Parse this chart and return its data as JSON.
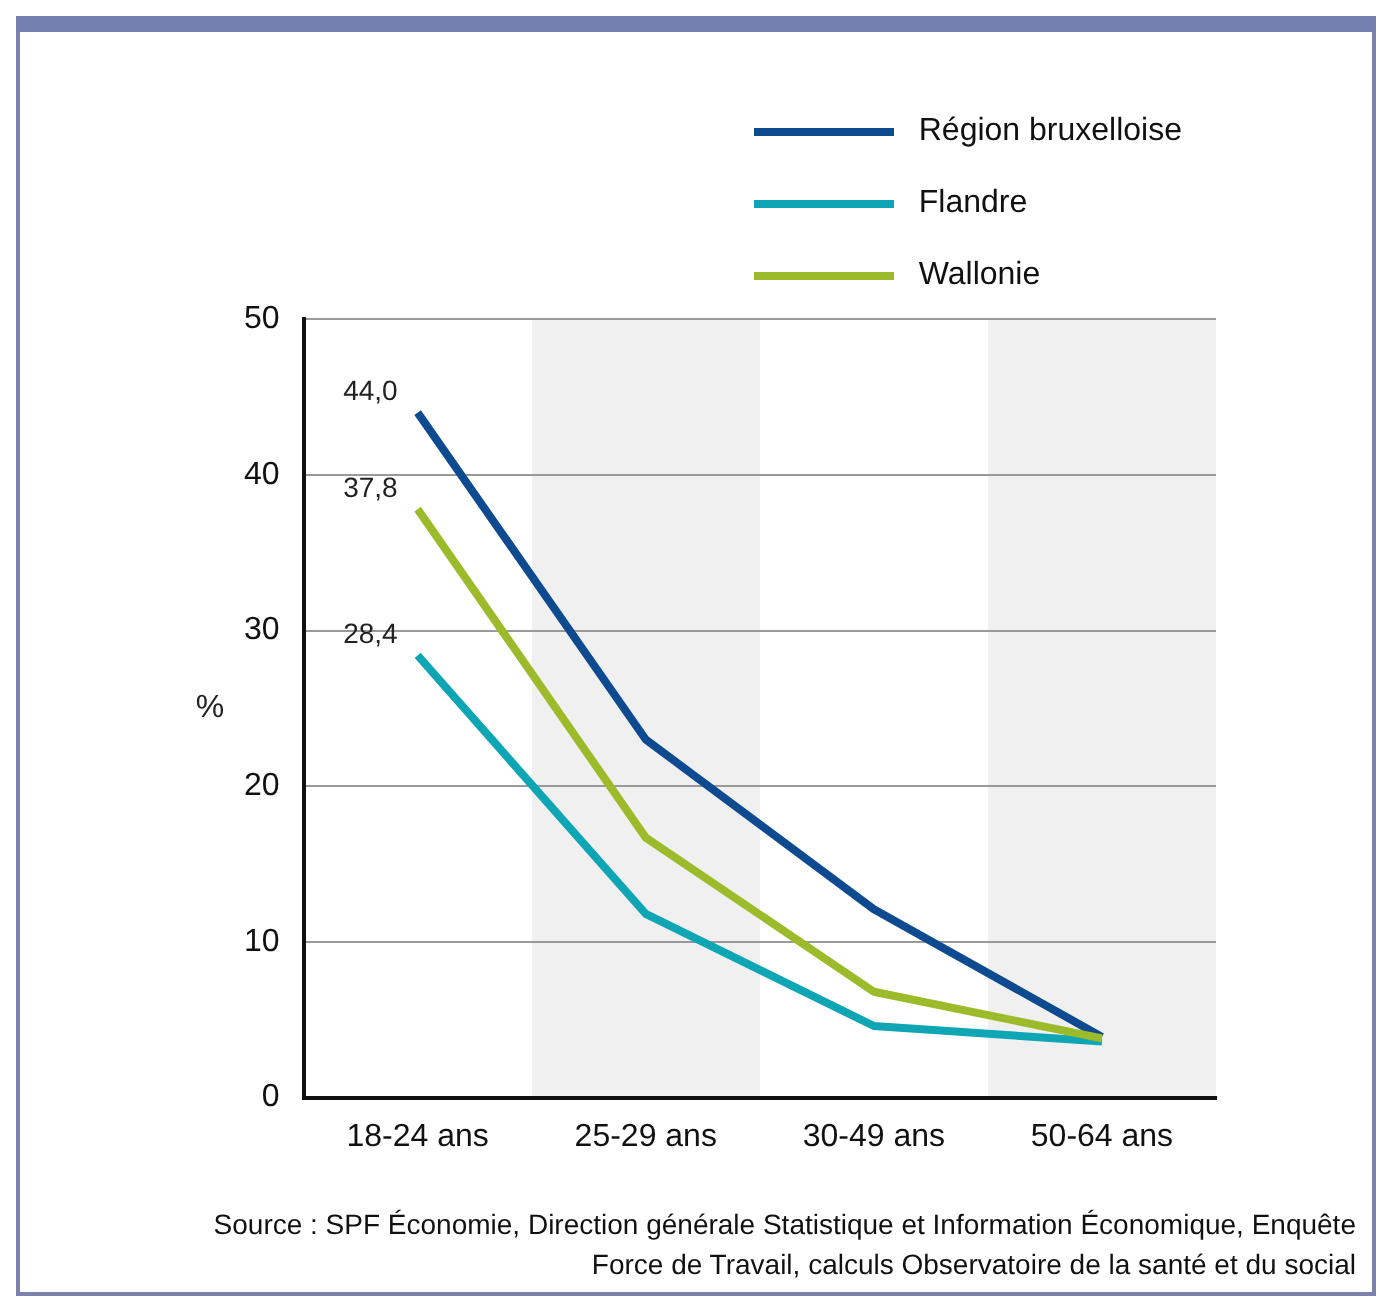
{
  "chart_data": {
    "type": "line",
    "categories": [
      "18-24 ans",
      "25-29 ans",
      "30-49 ans",
      "50-64 ans"
    ],
    "ylabel": "%",
    "series": [
      {
        "name": "Région bruxelloise",
        "color": "#0d4a8f",
        "values": [
          44.0,
          23.0,
          12.1,
          3.9
        ],
        "value_labels": [
          "44,0",
          null,
          null,
          null
        ]
      },
      {
        "name": "Flandre",
        "color": "#0ea5b5",
        "values": [
          28.4,
          11.8,
          4.6,
          3.6
        ],
        "value_labels": [
          "28,4",
          null,
          null,
          null
        ]
      },
      {
        "name": "Wallonie",
        "color": "#9bbb2a",
        "values": [
          37.8,
          16.7,
          6.8,
          3.8
        ],
        "value_labels": [
          "37,8",
          null,
          null,
          null
        ]
      }
    ],
    "ylim": [
      0,
      50
    ],
    "yticks": [
      0,
      10,
      20,
      30,
      40,
      50
    ],
    "grid": "y",
    "legend": "top right",
    "marker": "none",
    "line_style": "solid",
    "annotations": [
      "Source : SPF Économie, Direction générale Statistique et Information Économique, Enquête Force de Travail, calculs Observatoire de la santé et du social"
    ]
  }
}
